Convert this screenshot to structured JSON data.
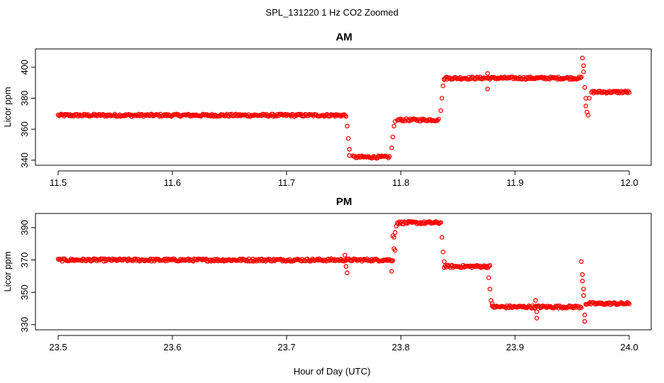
{
  "figure": {
    "suptitle": "SPL_131220  1 Hz CO2 Zoomed",
    "xlabel": "Hour of Day (UTC)"
  },
  "colors": {
    "marker": "#ff0000",
    "axis": "#000000",
    "background": "#ffffff"
  },
  "chart_data": [
    {
      "type": "scatter",
      "title": "AM",
      "xlabel": "Hour of Day (UTC)",
      "ylabel": "Licor ppm",
      "xlim": [
        11.5,
        12.0
      ],
      "ylim": [
        339,
        410
      ],
      "x_ticks": [
        11.5,
        11.6,
        11.7,
        11.8,
        11.9,
        12.0
      ],
      "x_tick_labels": [
        "11.5",
        "11.6",
        "11.7",
        "11.8",
        "11.9",
        "12.0"
      ],
      "y_ticks": [
        340,
        360,
        380,
        400
      ],
      "y_tick_labels": [
        "340",
        "360",
        "380",
        "400"
      ],
      "marker": "open-circle",
      "segments": [
        {
          "x_start": 11.5,
          "x_end": 11.752,
          "level": 369
        },
        {
          "x_start": 11.758,
          "x_end": 11.79,
          "level": 342
        },
        {
          "x_start": 11.797,
          "x_end": 11.833,
          "level": 366
        },
        {
          "x_start": 11.838,
          "x_end": 11.958,
          "level": 393
        },
        {
          "x_start": 11.967,
          "x_end": 12.0,
          "level": 384
        }
      ],
      "transitions": [
        {
          "x": [
            11.753,
            11.754,
            11.755,
            11.755
          ],
          "y": [
            362,
            354,
            347,
            343
          ]
        },
        {
          "x": [
            11.792,
            11.793,
            11.794,
            11.795
          ],
          "y": [
            348,
            355,
            362,
            365
          ]
        },
        {
          "x": [
            11.835,
            11.836,
            11.837,
            11.838
          ],
          "y": [
            372,
            380,
            388,
            392
          ]
        },
        {
          "x": [
            11.876,
            11.876
          ],
          "y": [
            386,
            396
          ]
        },
        {
          "x": [
            11.959,
            11.96,
            11.96,
            11.961,
            11.962,
            11.962,
            11.963,
            11.964,
            11.965
          ],
          "y": [
            406,
            401,
            397,
            387,
            380,
            375,
            371,
            369,
            380
          ]
        }
      ]
    },
    {
      "type": "scatter",
      "title": "PM",
      "xlabel": "Hour of Day (UTC)",
      "ylabel": "Licor ppm",
      "xlim": [
        23.5,
        24.0
      ],
      "ylim": [
        329,
        397
      ],
      "x_ticks": [
        23.5,
        23.6,
        23.7,
        23.8,
        23.9,
        24.0
      ],
      "x_tick_labels": [
        "23.5",
        "23.6",
        "23.7",
        "23.8",
        "23.9",
        "24.0"
      ],
      "y_ticks": [
        330,
        350,
        370,
        390
      ],
      "y_tick_labels": [
        "330",
        "350",
        "370",
        "390"
      ],
      "marker": "open-circle",
      "segments": [
        {
          "x_start": 23.5,
          "x_end": 23.793,
          "level": 370
        },
        {
          "x_start": 23.797,
          "x_end": 23.835,
          "level": 393
        },
        {
          "x_start": 23.838,
          "x_end": 23.878,
          "level": 366
        },
        {
          "x_start": 23.88,
          "x_end": 23.958,
          "level": 341
        },
        {
          "x_start": 23.962,
          "x_end": 24.0,
          "level": 343
        }
      ],
      "transitions": [
        {
          "x": [
            23.751,
            23.752,
            23.753
          ],
          "y": [
            373,
            366,
            362
          ]
        },
        {
          "x": [
            23.792,
            23.793,
            23.794,
            23.794,
            23.795
          ],
          "y": [
            363,
            385,
            384,
            377,
            376
          ]
        },
        {
          "x": [
            23.795,
            23.796
          ],
          "y": [
            387,
            391
          ]
        },
        {
          "x": [
            23.836,
            23.837,
            23.838
          ],
          "y": [
            384,
            375,
            369
          ]
        },
        {
          "x": [
            23.877,
            23.878,
            23.879,
            23.88
          ],
          "y": [
            359,
            352,
            345,
            343
          ]
        },
        {
          "x": [
            23.918,
            23.919,
            23.919
          ],
          "y": [
            345,
            338,
            334
          ]
        },
        {
          "x": [
            23.958,
            23.959,
            23.959,
            23.96,
            23.96,
            23.961,
            23.961
          ],
          "y": [
            369,
            361,
            357,
            352,
            348,
            336,
            332
          ]
        }
      ]
    }
  ]
}
